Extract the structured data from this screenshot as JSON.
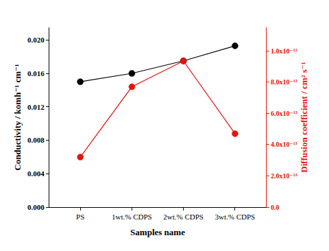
{
  "chart_data": {
    "type": "line",
    "categories": [
      "PS",
      "1wt.% CDPS",
      "2wt.% CDPS",
      "3wt.% CDPS"
    ],
    "x_label": "Samples name",
    "y_label": "Conductivity / komh⁻¹ cm⁻¹",
    "y2_label": "Diffusion coefficient / cm² s⁻¹",
    "series": [
      {
        "name": "Conductivity",
        "color": "#000000",
        "marker": "circle",
        "line_style": "solid",
        "values": [
          0.015,
          0.016,
          0.0175,
          0.0193
        ]
      },
      {
        "name": "Diffusion coefficient",
        "color": "#e8120c",
        "marker": "circle",
        "line_style": "solid",
        "axis": "y2",
        "values": [
          3.2e-13,
          7.7e-13,
          9.35e-13,
          4.7e-13
        ]
      }
    ],
    "ylim": [
      0,
      0.0215
    ],
    "yticks": [
      {
        "value": 0,
        "label": "0.000"
      },
      {
        "value": 0.004,
        "label": "0.004"
      },
      {
        "value": 0.008,
        "label": "0.008"
      },
      {
        "value": 0.012,
        "label": "0.012"
      },
      {
        "value": 0.016,
        "label": "0.016"
      },
      {
        "value": 0.02,
        "label": "0.020"
      }
    ],
    "y2lim": [
      0,
      1.15e-12
    ],
    "y2ticks": [
      {
        "value": 0,
        "label": "0.0"
      },
      {
        "value": 2e-13,
        "label": "2.0x10⁻¹³"
      },
      {
        "value": 4e-13,
        "label": "4.0x10⁻¹³"
      },
      {
        "value": 6e-13,
        "label": "6.0x10⁻¹³"
      },
      {
        "value": 8e-13,
        "label": "8.0x10⁻¹³"
      },
      {
        "value": 1e-12,
        "label": "1.0x10⁻¹²"
      }
    ],
    "grid": false
  }
}
